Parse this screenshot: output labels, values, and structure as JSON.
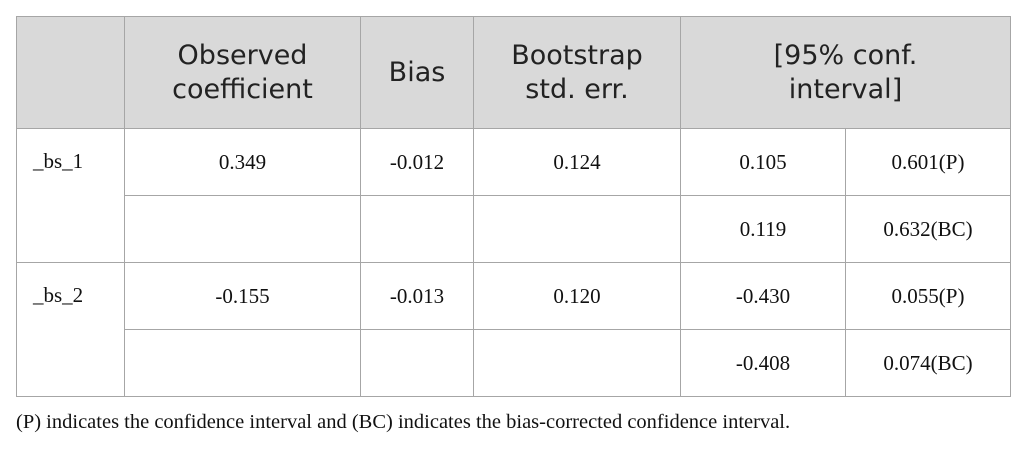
{
  "table": {
    "header": [
      "Observed coefficient",
      "Bias",
      "Bootstrap std. err.",
      "[95% conf. interval]"
    ],
    "rows": [
      {
        "label": "_bs_1",
        "coef": "0.349",
        "bias": "-0.012",
        "se": "0.124",
        "ci": [
          [
            "0.105",
            "0.601(P)"
          ],
          [
            "0.119",
            "0.632(BC)"
          ]
        ]
      },
      {
        "label": "_bs_2",
        "coef": "-0.155",
        "bias": "-0.013",
        "se": "0.120",
        "ci": [
          [
            "-0.430",
            "0.055(P)"
          ],
          [
            "-0.408",
            "0.074(BC)"
          ]
        ]
      }
    ]
  },
  "footnote": "(P) indicates the confidence interval and (BC) indicates the bias-corrected confidence interval."
}
